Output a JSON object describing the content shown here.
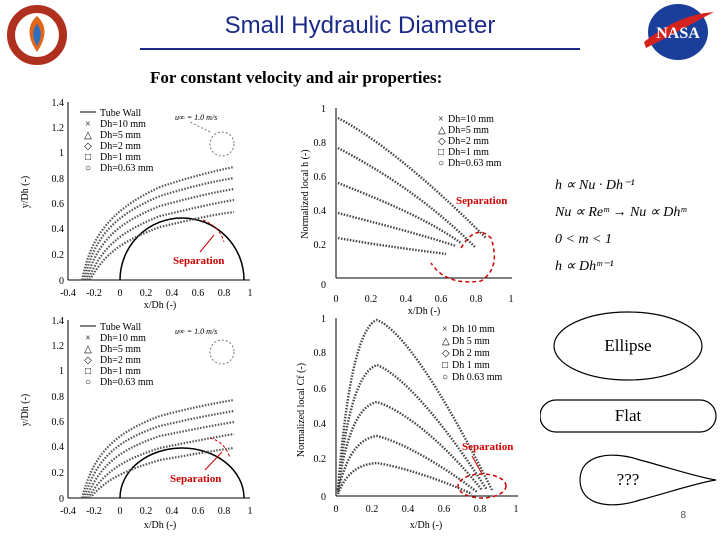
{
  "header": {
    "title": "Small Hydraulic Diameter",
    "subtitle": "For constant velocity and air properties:"
  },
  "plot_top_left": {
    "legend": [
      "Tube Wall",
      "Dh=10 mm",
      "Dh=5 mm",
      "Dh=2 mm",
      "Dh=1 mm",
      "Dh=0.63 mm"
    ],
    "annotation": "Separation",
    "velocity": "u∞ = 1.0 m/s",
    "ylabel": "y/Dh (-)",
    "xlabel": "x/Dh (-)",
    "yticks": [
      "1.4",
      "1.2",
      "1",
      "0.8",
      "0.6",
      "0.4",
      "0.2",
      "0"
    ],
    "xticks": [
      "-0.4",
      "-0.2",
      "0",
      "0.2",
      "0.4",
      "0.6",
      "0.8",
      "1"
    ]
  },
  "plot_top_right": {
    "legend": [
      "Dh=10 mm",
      "Dh=5 mm",
      "Dh=2 mm",
      "Dh=1 mm",
      "Dh=0.63 mm"
    ],
    "annotation": "Separation",
    "ylabel": "Normalized local h (-)",
    "xlabel": "x/Dh (-)",
    "yticks": [
      "1",
      "0.8",
      "0.6",
      "0.4",
      "0.2",
      "0"
    ],
    "xticks": [
      "0",
      "0.2",
      "0.4",
      "0.6",
      "0.8",
      "1"
    ]
  },
  "plot_bottom_left": {
    "legend": [
      "Tube Wall",
      "Dh=10 mm",
      "Dh=5 mm",
      "Dh=2 mm",
      "Dh=1 mm",
      "Dh=0.63 mm"
    ],
    "annotation": "Separation",
    "velocity": "u∞ = 1.0 m/s",
    "ylabel": "y/Dh (-)",
    "xlabel": "x/Dh (-)",
    "yticks": [
      "1.4",
      "1.2",
      "1",
      "0.8",
      "0.6",
      "0.4",
      "0.2",
      "0"
    ],
    "xticks": [
      "-0.4",
      "-0.2",
      "0",
      "0.2",
      "0.4",
      "0.6",
      "0.8",
      "1"
    ]
  },
  "plot_bottom_right": {
    "legend": [
      "Dh 10 mm",
      "Dh 5 mm",
      "Dh 2 mm",
      "Dh 1 mm",
      "Dh 0.63 mm"
    ],
    "annotation": "Separation",
    "ylabel": "Normalized local Cf (-)",
    "xlabel": "x/Dh (-)",
    "yticks": [
      "1",
      "0.8",
      "0.6",
      "0.4",
      "0.2",
      "0"
    ],
    "xticks": [
      "0",
      "0.2",
      "0.4",
      "0.6",
      "0.8",
      "1"
    ]
  },
  "formulas": {
    "f1": "h ∝ Nu · Dh⁻¹",
    "f2": "Nu ∝ Reᵐ → Nu ∝ Dhᵐ",
    "f3": "0 < m < 1",
    "f4": "h ∝ Dhᵐ⁻¹"
  },
  "shapes": {
    "ellipse": "Ellipse",
    "flat": "Flat",
    "teardrop": "???"
  },
  "page_number": "8",
  "colors": {
    "title": "#1b2a8a",
    "separation": "#cc0000",
    "axis": "#000000"
  }
}
